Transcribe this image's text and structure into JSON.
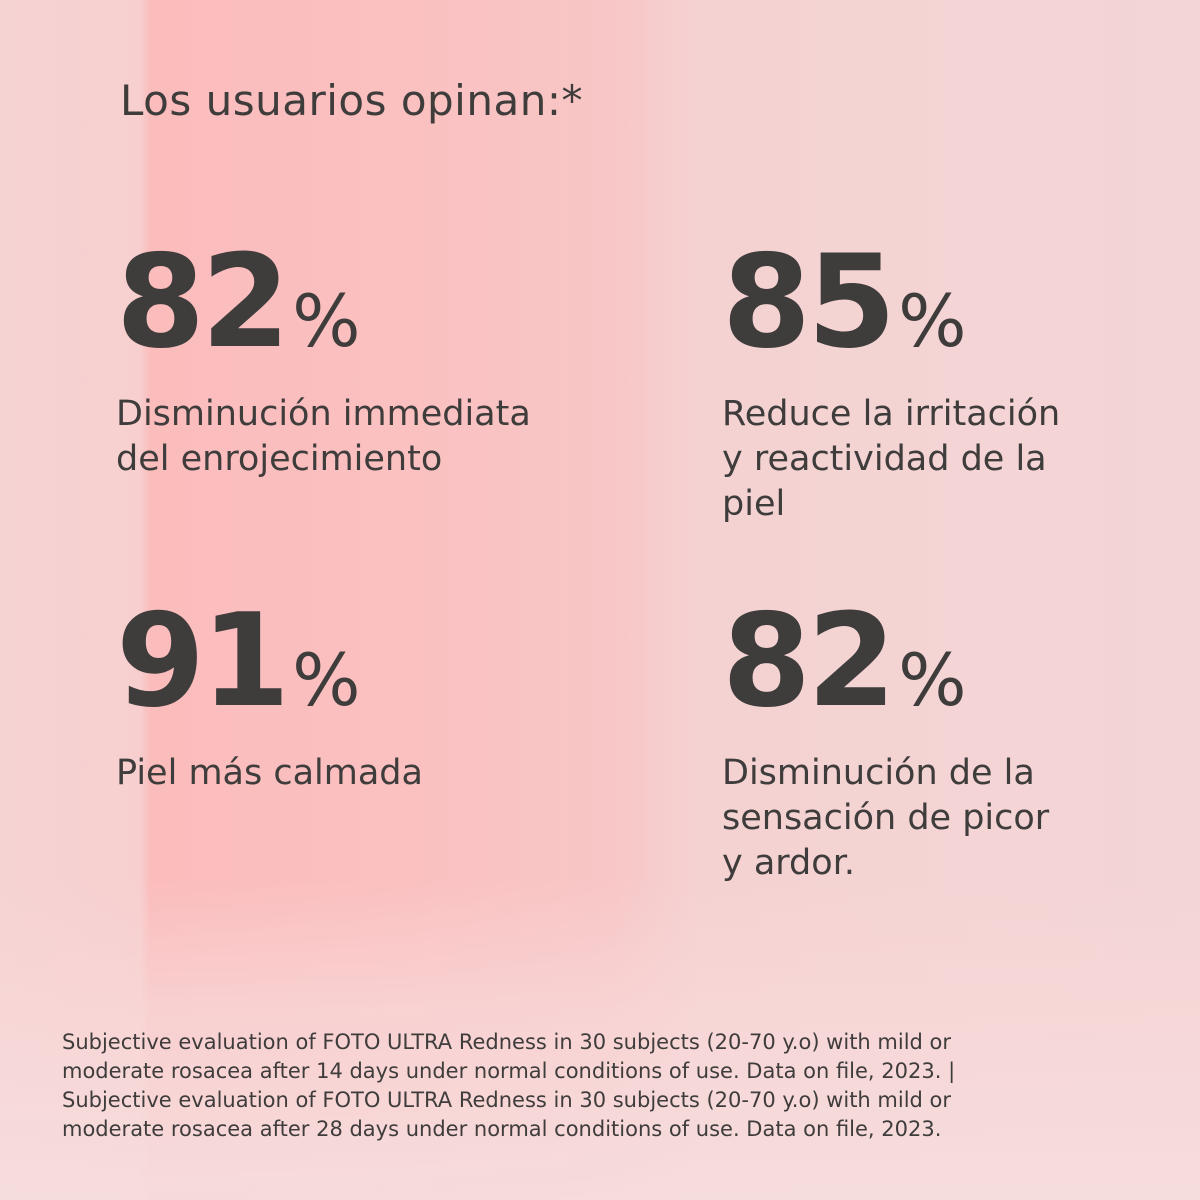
{
  "title": "Los usuarios opinan:*",
  "stats": [
    {
      "value": 82,
      "unit": "%",
      "label": [
        "Disminución immediata",
        "del enrojecimiento"
      ]
    },
    {
      "value": 85,
      "unit": "%",
      "label": [
        "Reduce la irritación",
        "y reactividad de la",
        "piel"
      ]
    },
    {
      "value": 91,
      "unit": "%",
      "label": [
        "Piel más calmada"
      ]
    },
    {
      "value": 82,
      "unit": "%",
      "label": [
        "Disminución de la",
        "sensación de picor",
        "y ardor."
      ]
    }
  ],
  "footnote": [
    "Subjective evaluation of FOTO ULTRA Redness in 30 subjects (20-70 y.o) with mild or",
    "moderate rosacea after 14 days under normal conditions of use. Data on file, 2023. |",
    "Subjective evaluation of FOTO ULTRA Redness in 30 subjects (20-70 y.o) with mild or",
    "moderate rosacea after 28 days under normal conditions of use. Data on file, 2023."
  ]
}
